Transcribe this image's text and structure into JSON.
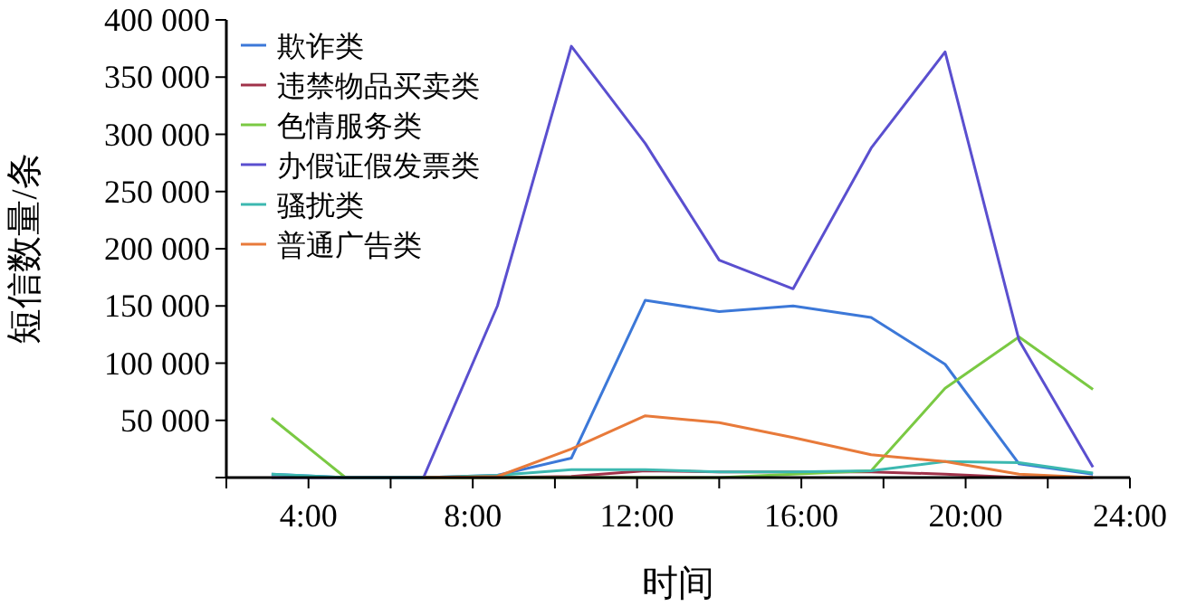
{
  "chart_data": {
    "type": "line",
    "xlabel": "时间",
    "ylabel": "短信数量/条",
    "x": [
      3.1,
      4.9,
      6.8,
      8.6,
      10.4,
      12.2,
      14.0,
      15.8,
      17.7,
      19.5,
      21.3,
      23.1
    ],
    "series": [
      {
        "name": "欺诈类",
        "color": "#3c78d8",
        "values": [
          3000,
          0,
          0,
          2000,
          17000,
          155000,
          145000,
          150000,
          140000,
          99000,
          12000,
          3000
        ]
      },
      {
        "name": "违禁物品买卖类",
        "color": "#a0324a",
        "values": [
          null,
          null,
          0,
          0,
          1000,
          6000,
          5000,
          5000,
          5000,
          3000,
          0,
          0
        ]
      },
      {
        "name": "色情服务类",
        "color": "#7ac943",
        "values": [
          52000,
          0,
          0,
          0,
          0,
          0,
          0,
          3000,
          6000,
          78000,
          123000,
          77000
        ]
      },
      {
        "name": "办假证假发票类",
        "color": "#5a4fcf",
        "values": [
          0,
          0,
          0,
          150000,
          377000,
          292000,
          190000,
          165000,
          288000,
          372000,
          120000,
          9000
        ]
      },
      {
        "name": "骚扰类",
        "color": "#3cb8b0",
        "values": [
          3000,
          0,
          0,
          2000,
          7000,
          7000,
          5000,
          5000,
          6000,
          14000,
          13000,
          4000
        ]
      },
      {
        "name": "普通广告类",
        "color": "#e87a3a",
        "values": [
          null,
          null,
          0,
          1000,
          25000,
          54000,
          48000,
          35000,
          20000,
          14000,
          3000,
          0
        ]
      }
    ],
    "xlim": [
      2,
      24
    ],
    "xticks": [
      {
        "value": 2,
        "label": null
      },
      {
        "value": 4,
        "label": "4:00"
      },
      {
        "value": 6,
        "label": null
      },
      {
        "value": 8,
        "label": "8:00"
      },
      {
        "value": 10,
        "label": null
      },
      {
        "value": 12,
        "label": "12:00"
      },
      {
        "value": 14,
        "label": null
      },
      {
        "value": 16,
        "label": "16:00"
      },
      {
        "value": 18,
        "label": null
      },
      {
        "value": 20,
        "label": "20:00"
      },
      {
        "value": 22,
        "label": null
      },
      {
        "value": 24,
        "label": "24:00"
      }
    ],
    "ylim": [
      0,
      400000
    ],
    "yticks": [
      {
        "value": 0,
        "label": null
      },
      {
        "value": 50000,
        "label": "50 000"
      },
      {
        "value": 100000,
        "label": "100 000"
      },
      {
        "value": 150000,
        "label": "150 000"
      },
      {
        "value": 200000,
        "label": "200 000"
      },
      {
        "value": 250000,
        "label": "250 000"
      },
      {
        "value": 300000,
        "label": "300 000"
      },
      {
        "value": 350000,
        "label": "350 000"
      },
      {
        "value": 400000,
        "label": "400 000"
      }
    ],
    "grid": false,
    "legend": "top left",
    "marker": "none",
    "line_style": "solid"
  }
}
